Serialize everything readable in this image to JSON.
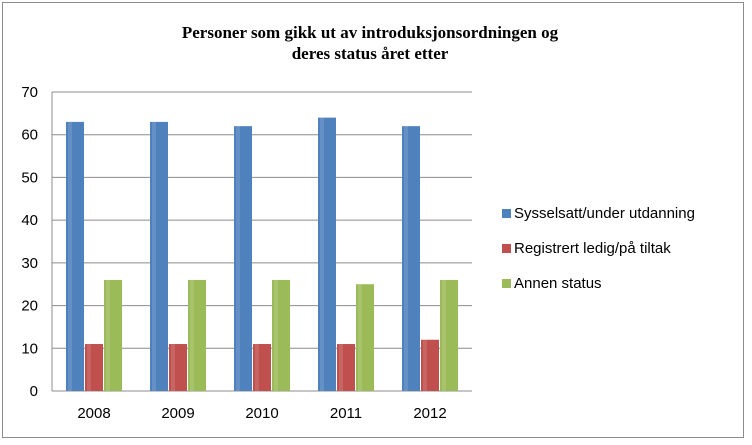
{
  "chart_data": {
    "type": "bar",
    "title": "Personer som gikk ut av introduksjonsordningen og deres status året etter",
    "title_lines": [
      "Personer som gikk ut av introduksjonsordningen og",
      "deres status året etter"
    ],
    "categories": [
      "2008",
      "2009",
      "2010",
      "2011",
      "2012"
    ],
    "series": [
      {
        "name": "Sysselsatt/under utdanning",
        "values": [
          63,
          63,
          62,
          64,
          62
        ],
        "color": "#4f81bd"
      },
      {
        "name": "Registrert ledig/på tiltak",
        "values": [
          11,
          11,
          11,
          11,
          12
        ],
        "color": "#c0504d"
      },
      {
        "name": "Annen status",
        "values": [
          26,
          26,
          26,
          25,
          26
        ],
        "color": "#9bbb59"
      }
    ],
    "ylim": [
      0,
      70
    ],
    "yticks": [
      "0",
      "10",
      "20",
      "30",
      "40",
      "50",
      "60",
      "70"
    ],
    "grid": true,
    "legend_position": "right"
  }
}
